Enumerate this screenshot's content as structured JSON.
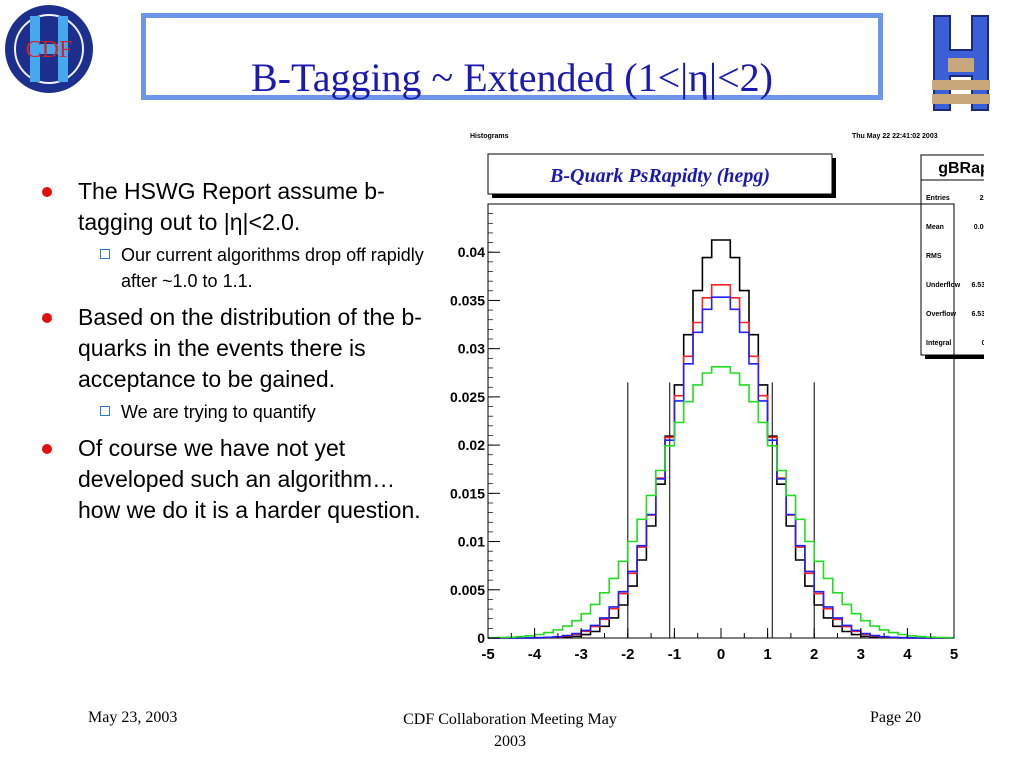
{
  "slide": {
    "title": "B-Tagging ~ Extended (1<|η|<2)",
    "logo_left_text": "CDF",
    "footer_left": "May 23, 2003",
    "footer_mid_line1": "CDF Collaboration Meeting May",
    "footer_mid_line2": "2003",
    "footer_right": "Page 20"
  },
  "bullets": [
    {
      "text": "The HSWG Report assume b-tagging out to |η|<2.0.",
      "sub": [
        "Our current algorithms drop off rapidly after ~1.0 to 1.1."
      ]
    },
    {
      "text": "Based on the distribution of the b-quarks in the events there is acceptance to be gained.",
      "sub": [
        "We are trying to quantify"
      ]
    },
    {
      "text": "Of course we have not yet developed such an algorithm…how we do it is a harder question.",
      "sub": []
    }
  ],
  "colors": {
    "title": "#1a1ab0",
    "title_border": "#6f95ea",
    "bullet": "#e01010",
    "sub_bullet": "#2a7bd6"
  },
  "chart_data": {
    "type": "line",
    "header_left": "Histograms",
    "header_right": "Thu May 22 22:41:02 2003",
    "title": "B-Quark PsRapidty (hepg)",
    "xlim": [
      -5,
      5
    ],
    "ylim": [
      0,
      0.045
    ],
    "x_ticks": [
      -5,
      -4,
      -3,
      -2,
      -1,
      0,
      1,
      2,
      3,
      4,
      5
    ],
    "y_ticks": [
      "0",
      "0.005",
      "0.01",
      "0.015",
      "0.02",
      "0.025",
      "0.03",
      "0.035",
      "0.04"
    ],
    "stats": {
      "name": "gBRap",
      "rows": [
        {
          "label": "Entries",
          "value": "229586"
        },
        {
          "label": "Mean",
          "value": "0.002242"
        },
        {
          "label": "RMS",
          "value": "1.035"
        },
        {
          "label": "Underflow",
          "value": "6.533e-05"
        },
        {
          "label": "Overflow",
          "value": "6.533e-05"
        },
        {
          "label": "Integral",
          "value": "0.9999"
        }
      ]
    },
    "vertical_lines": [
      -2,
      -1.1,
      1.1,
      2
    ],
    "bin_width": 0.2,
    "series": [
      {
        "color": "#000000",
        "peak": 0.0415,
        "sigma": 0.94
      },
      {
        "color": "#ff2020",
        "peak": 0.0368,
        "sigma": 1.03
      },
      {
        "color": "#2020ff",
        "peak": 0.0355,
        "sigma": 1.05
      },
      {
        "color": "#22dd22",
        "peak": 0.0282,
        "sigma": 1.32
      }
    ]
  }
}
